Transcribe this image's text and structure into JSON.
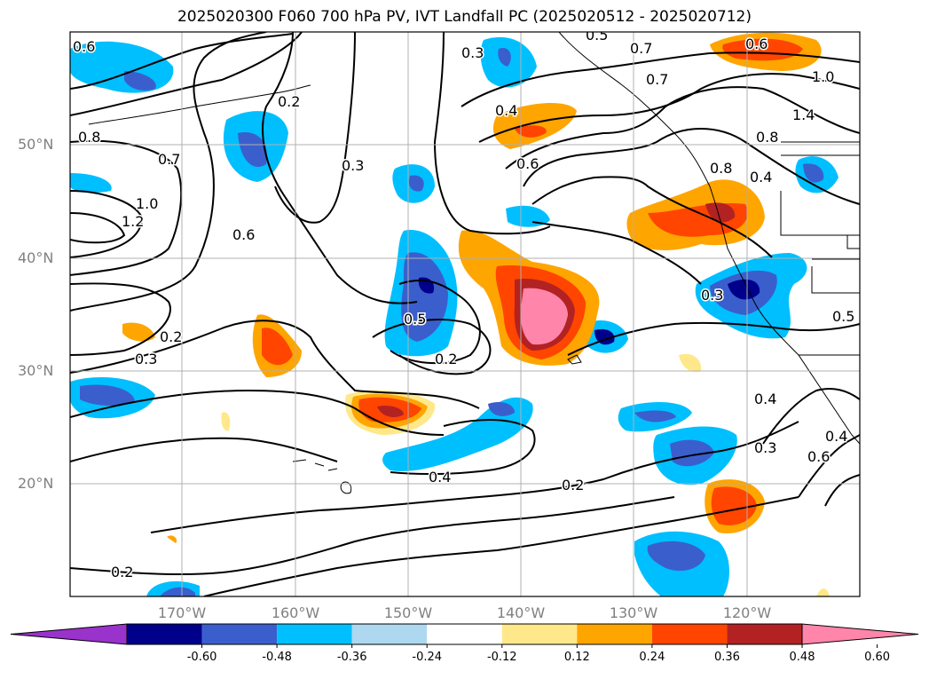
{
  "title": "2025020300 F060 700 hPa PV, IVT Landfall PC (2025020512 - 2025020712)",
  "map": {
    "lat_labels": [
      "50°N",
      "40°N",
      "30°N",
      "20°N"
    ],
    "lon_labels": [
      "170°W",
      "160°W",
      "150°W",
      "140°W",
      "130°W",
      "120°W"
    ]
  },
  "contour_labels": [
    "0.6",
    "0.3",
    "0.5",
    "0.7",
    "0.6",
    "1.0",
    "0.7",
    "0.4",
    "1.4",
    "0.8",
    "0.8",
    "0.8",
    "0.7",
    "1.0",
    "1.2",
    "0.2",
    "0.3",
    "0.6",
    "0.6",
    "0.4",
    "0.5",
    "0.2",
    "0.3",
    "0.5",
    "0.6",
    "0.4",
    "0.3",
    "0.2",
    "0.2",
    "0.2",
    "0.3",
    "0.4",
    "0.4"
  ],
  "colorbar": {
    "ticks": [
      "-0.60",
      "-0.48",
      "-0.36",
      "-0.24",
      "-0.12",
      "0.12",
      "0.24",
      "0.36",
      "0.48",
      "0.60"
    ],
    "colors": [
      "#9933cc",
      "#00008b",
      "#3a5fcd",
      "#00bfff",
      "#add8f0",
      "#ffffff",
      "#ffe88a",
      "#ffa500",
      "#ff4500",
      "#b22222",
      "#ff85aa",
      "#ff85aa"
    ]
  }
}
